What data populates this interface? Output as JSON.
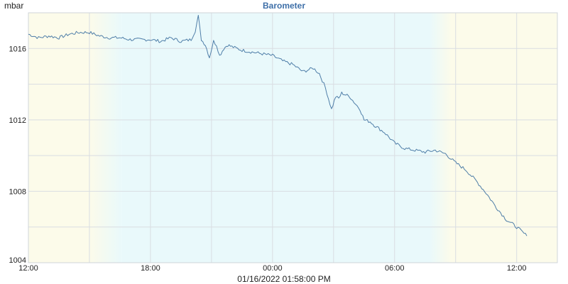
{
  "header": {
    "unit": "mbar",
    "title": "Barometer"
  },
  "footer": {
    "timestamp": "01/16/2022 01:58:00 PM"
  },
  "colors": {
    "line": "#4f7ea8",
    "grid": "#d9dde2",
    "title": "#3e6fa8",
    "day_band": "#fcfbea",
    "night_band": "#e9f9fb"
  },
  "chart_data": {
    "type": "line",
    "title": "Barometer",
    "ylabel": "mbar",
    "xlabel": "",
    "ylim": [
      1004,
      1018
    ],
    "y_ticks": [
      1004,
      1008,
      1012,
      1016
    ],
    "y_tick_labels": [
      "1004",
      "1008",
      "1012",
      "1016"
    ],
    "x_range_hours": [
      12,
      38
    ],
    "x_ticks": [
      12,
      18,
      24,
      30,
      36
    ],
    "x_tick_labels": [
      "12:00",
      "18:00",
      "00:00",
      "06:00",
      "12:00"
    ],
    "grid": true,
    "background_bands": [
      {
        "kind": "day",
        "from": 12,
        "to": 15.0
      },
      {
        "kind": "dusk",
        "from": 15.0,
        "to": 16.6
      },
      {
        "kind": "night",
        "from": 16.6,
        "to": 31.7
      },
      {
        "kind": "dawn",
        "from": 31.7,
        "to": 32.8
      },
      {
        "kind": "day",
        "from": 32.8,
        "to": 38
      }
    ],
    "series": [
      {
        "x": [
          12.0,
          12.5,
          13.0,
          13.5,
          14.0,
          14.5,
          15.0,
          15.5,
          16.0,
          16.5,
          17.0,
          17.5,
          18.0,
          18.5,
          19.0,
          19.5,
          20.0,
          20.2,
          20.35,
          20.5,
          20.7,
          20.9,
          21.1,
          21.25,
          21.4,
          21.6,
          21.8,
          22.0,
          22.5,
          23.0,
          23.5,
          24.0,
          24.5,
          25.0,
          25.5,
          26.0,
          26.3,
          26.6,
          26.9,
          27.1,
          27.25,
          27.4,
          27.6,
          27.8,
          28.0,
          28.3,
          28.5,
          28.8,
          29.0,
          29.5,
          30.0,
          30.5,
          31.0,
          31.5,
          32.0,
          32.5,
          33.0,
          33.5,
          34.0,
          34.5,
          35.0,
          35.5,
          36.0,
          36.5,
          37.0,
          37.5,
          38.0
        ],
        "values": [
          1016.8,
          1016.6,
          1016.7,
          1016.6,
          1016.8,
          1016.9,
          1016.9,
          1016.7,
          1016.6,
          1016.6,
          1016.5,
          1016.5,
          1016.5,
          1016.4,
          1016.6,
          1016.4,
          1016.5,
          1017.0,
          1017.8,
          1016.5,
          1016.2,
          1015.5,
          1016.4,
          1016.2,
          1015.6,
          1016.0,
          1016.2,
          1016.1,
          1015.9,
          1015.8,
          1015.7,
          1015.6,
          1015.3,
          1015.1,
          1014.7,
          1014.9,
          1014.6,
          1013.8,
          1012.6,
          1013.3,
          1013.2,
          1013.5,
          1013.4,
          1013.3,
          1013.0,
          1012.6,
          1012.0,
          1011.9,
          1011.7,
          1011.3,
          1010.7,
          1010.4,
          1010.3,
          1010.2,
          1010.3,
          1010.1,
          1009.6,
          1009.2,
          1008.6,
          1007.9,
          1007.1,
          1006.4,
          1006.0,
          1005.5,
          null,
          null,
          null
        ]
      }
    ]
  }
}
